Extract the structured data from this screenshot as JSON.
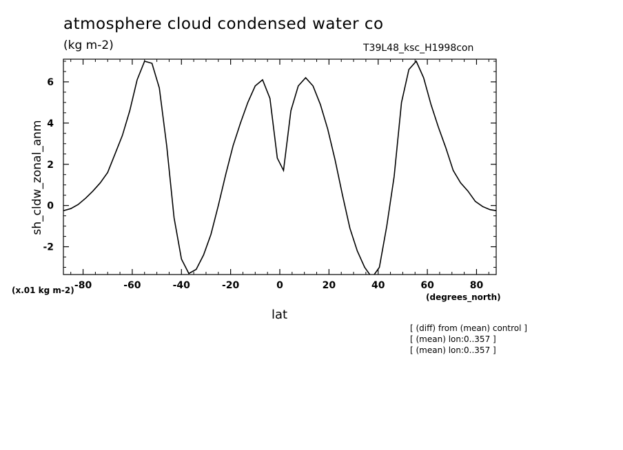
{
  "chart_data": {
    "type": "line",
    "title": "atmosphere cloud condensed water co",
    "units_label": "(kg m-2)",
    "run_label": "T39L48_ksc_H1998con",
    "ylabel": "sh_cldw_zonal_anm",
    "xlabel": "lat",
    "x_units": "(degrees_north)",
    "y_scale_note": "(x.01 kg m-2)",
    "xlim": [
      -88,
      88
    ],
    "ylim": [
      -3.35,
      7.1
    ],
    "x_ticks": [
      -80,
      -60,
      -40,
      -20,
      0,
      20,
      40,
      60,
      80
    ],
    "x_tick_labels": [
      "-80",
      "-60",
      "-40",
      "-20",
      "0",
      "20",
      "40",
      "60",
      "80"
    ],
    "y_ticks": [
      -2,
      0,
      2,
      4,
      6
    ],
    "y_tick_labels": [
      "-2",
      "0",
      "2",
      "4",
      "6"
    ],
    "series": [
      {
        "x": [
          -87.9,
          -85,
          -82,
          -79,
          -76,
          -73,
          -70,
          -67,
          -64,
          -61,
          -58,
          -55,
          -52,
          -49,
          -46,
          -43,
          -40,
          -37,
          -34,
          -31,
          -28,
          -25,
          -22,
          -19,
          -16,
          -13,
          -10,
          -7,
          -4,
          -1,
          1.5,
          4.5,
          7.5,
          10.5,
          13.5,
          16.5,
          19.5,
          22.5,
          25.5,
          28.5,
          31.5,
          34.5,
          37.5,
          40.5,
          43.5,
          46.5,
          49.5,
          52.5,
          55.5,
          58.5,
          61.5,
          64.5,
          67.5,
          70.5,
          73.5,
          76.5,
          79.5,
          82.5,
          85.5,
          87.9
        ],
        "y": [
          -0.25,
          -0.15,
          0.05,
          0.35,
          0.7,
          1.1,
          1.6,
          2.5,
          3.4,
          4.6,
          6.1,
          7.0,
          6.9,
          5.7,
          2.9,
          -0.6,
          -2.6,
          -3.3,
          -3.1,
          -2.4,
          -1.4,
          0.0,
          1.5,
          2.9,
          4.0,
          5.0,
          5.8,
          6.1,
          5.2,
          2.3,
          1.7,
          4.6,
          5.8,
          6.2,
          5.8,
          4.9,
          3.7,
          2.2,
          0.5,
          -1.1,
          -2.2,
          -3.0,
          -3.5,
          -3.0,
          -1.0,
          1.4,
          5.0,
          6.6,
          7.0,
          6.2,
          4.9,
          3.8,
          2.8,
          1.7,
          1.1,
          0.7,
          0.2,
          -0.05,
          -0.2,
          -0.25
        ]
      }
    ]
  },
  "notes": [
    "[ (diff) from (mean) control ]",
    "[ (mean) lon:0..357 ]",
    "[ (mean) lon:0..357 ]"
  ],
  "style": {
    "line_color": "#000000",
    "background": "#ffffff"
  }
}
